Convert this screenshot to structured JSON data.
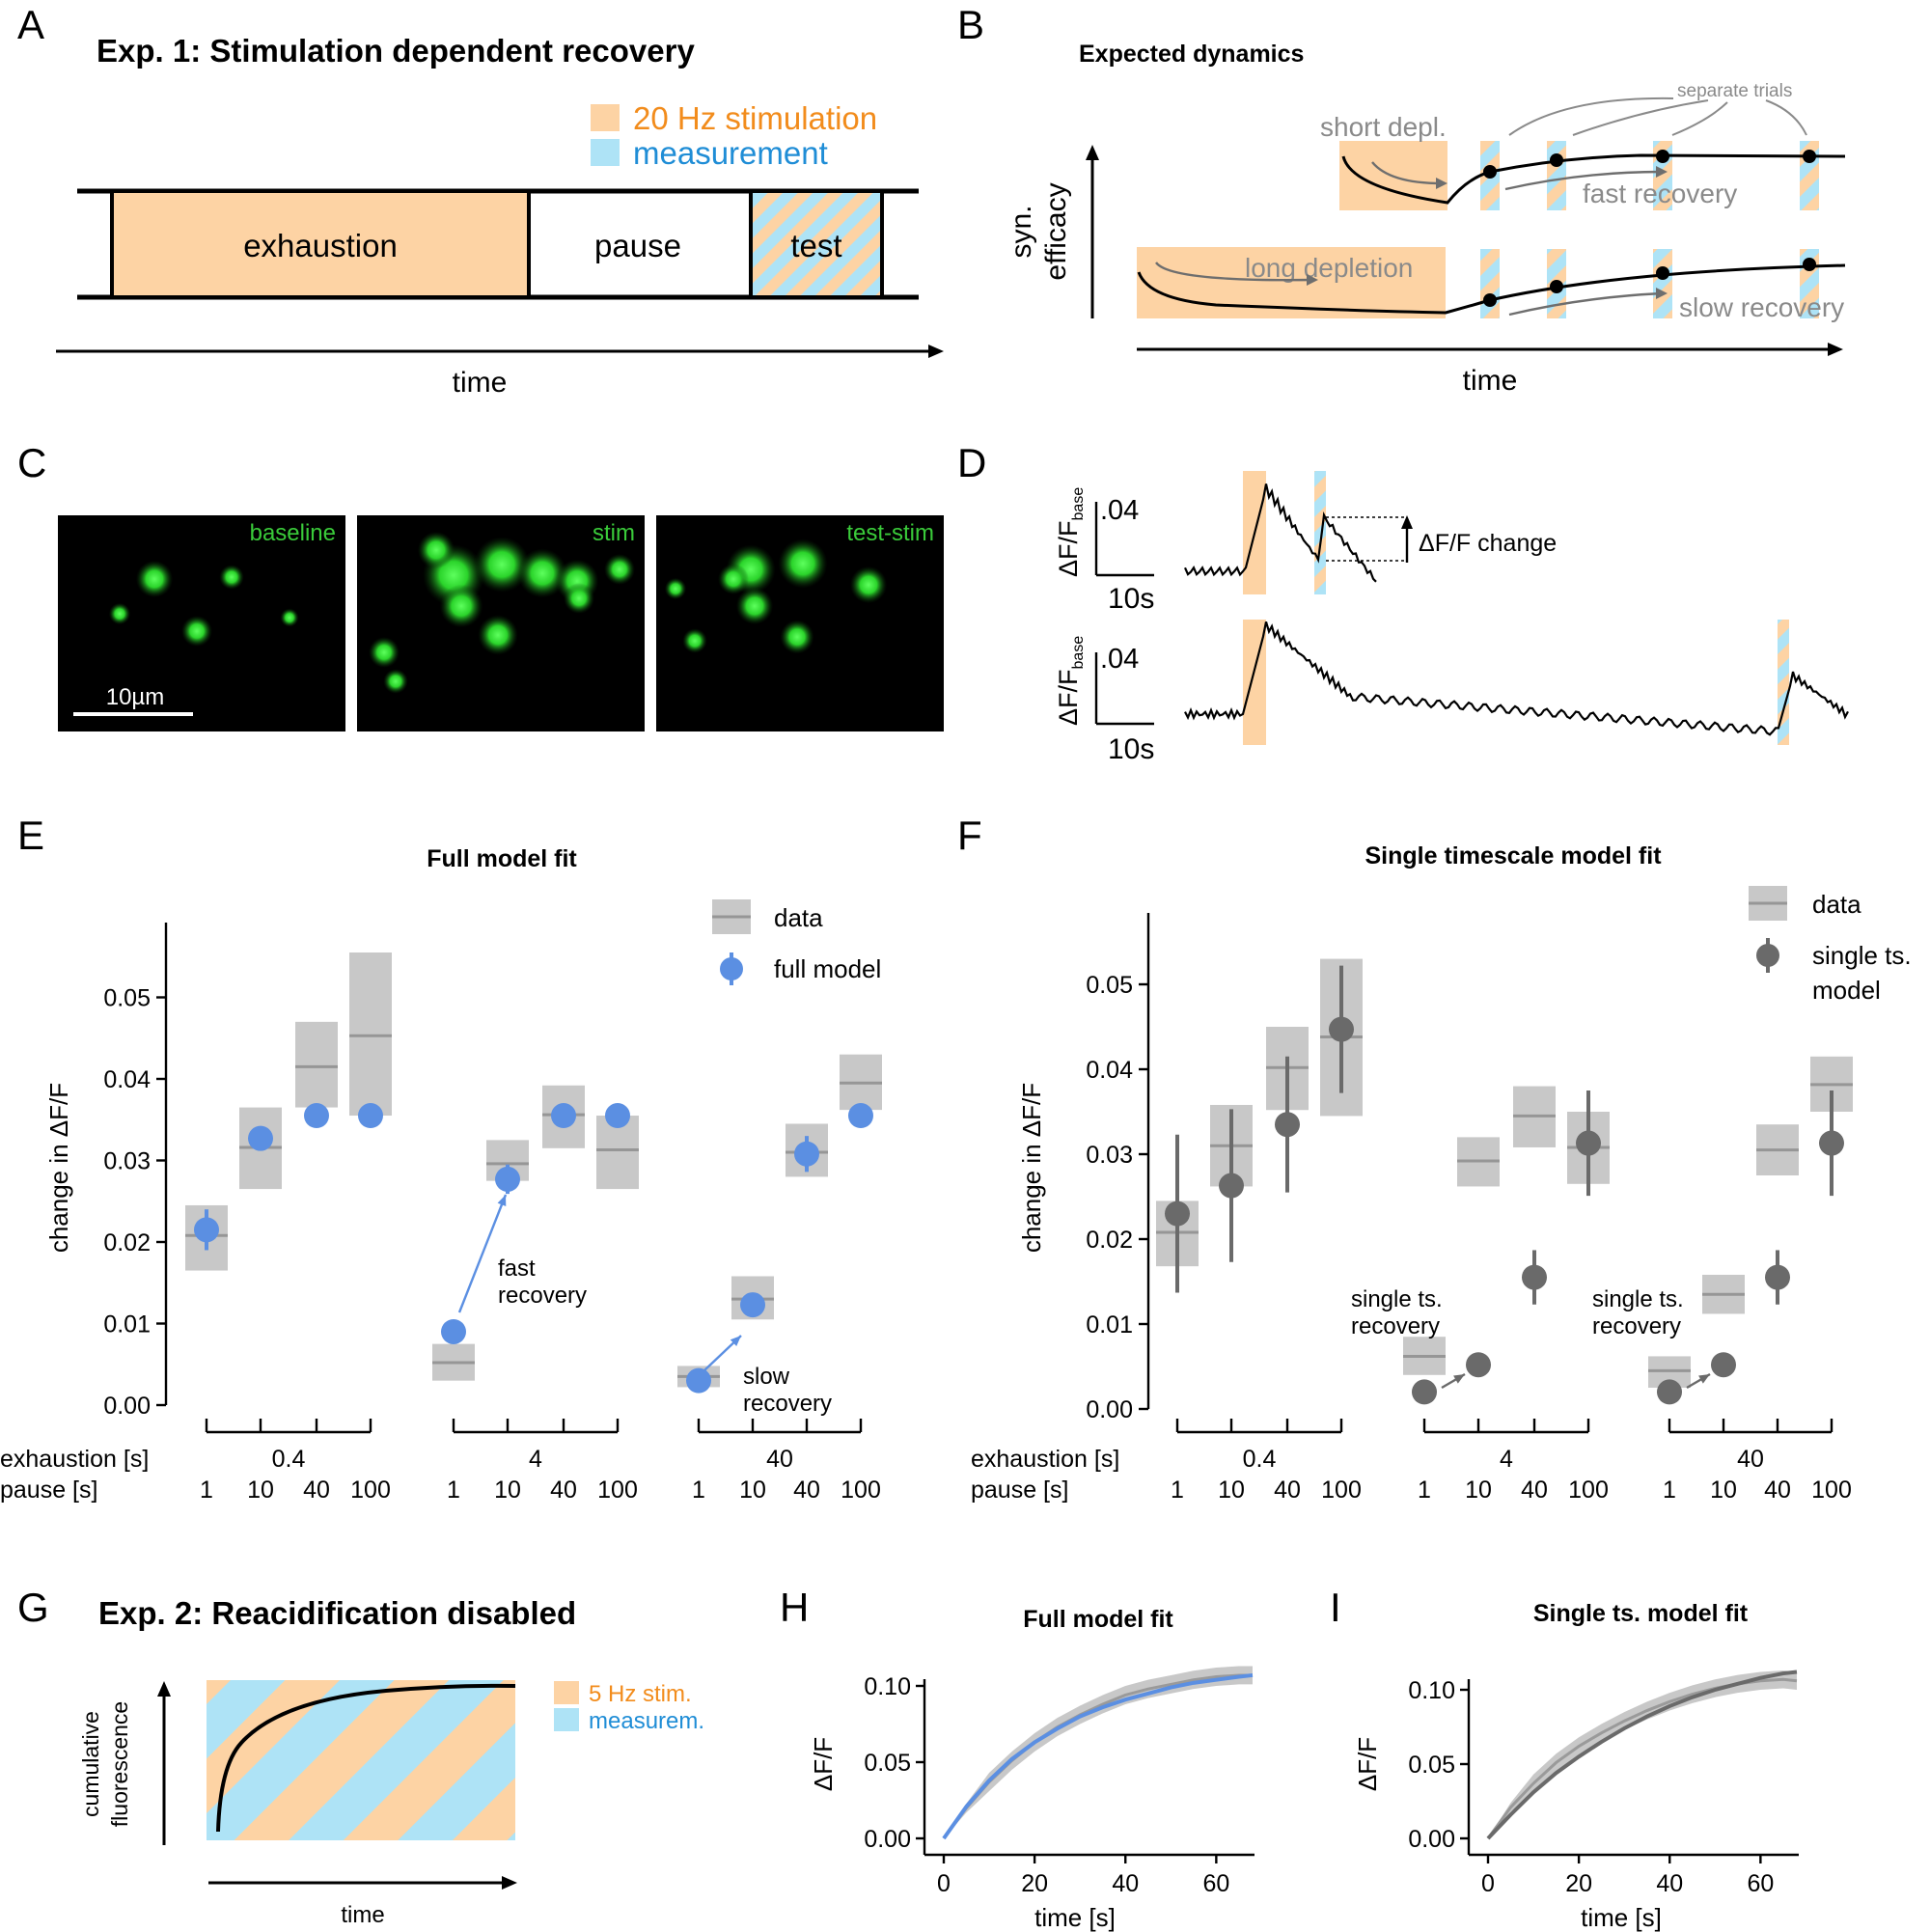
{
  "colors": {
    "orange": "#fdd3a4",
    "blue": "#aee3f6",
    "model_blue": "#5b8fe2",
    "data_gray": "#c8c8c8",
    "data_line": "#969696",
    "model_gray": "#6a6a6a",
    "green": "#33cc33",
    "orange_text": "#f28c1c",
    "blue_text": "#1f8dd6"
  },
  "panels": {
    "A": {
      "letter": "A",
      "title": "Exp. 1: Stimulation dependent recovery",
      "legend_stim": "20 Hz stimulation",
      "legend_meas": "measurement",
      "seg_exhaustion": "exhaustion",
      "seg_pause": "pause",
      "seg_test": "test",
      "xlabel": "time"
    },
    "B": {
      "letter": "B",
      "title": "Expected dynamics",
      "separate_trials": "separate trials",
      "short_depl": "short depl.",
      "fast_recovery": "fast recovery",
      "long_depletion": "long depletion",
      "slow_recovery": "slow recovery",
      "ylabel_1": "syn.",
      "ylabel_2": "efficacy",
      "xlabel": "time"
    },
    "C": {
      "letter": "C",
      "img1": "baseline",
      "img2": "stim",
      "img3": "test-stim",
      "scalebar": "10µm"
    },
    "D": {
      "letter": "D",
      "ylabel_main": "ΔF/F",
      "ylabel_sub": "base",
      "ytick": ".04",
      "xscale": "10s",
      "annotation": "ΔF/F change"
    },
    "E": {
      "letter": "E",
      "tick_labels": [
        "0.00",
        "0.01",
        "0.02",
        "0.03",
        "0.04",
        "0.05"
      ],
      "legend_data": "data",
      "legend_model": "full model",
      "ann_fast": [
        "fast",
        "recovery"
      ],
      "ann_slow": [
        "slow",
        "recovery"
      ]
    },
    "F": {
      "letter": "F",
      "tick_labels": [
        "0.00",
        "0.01",
        "0.02",
        "0.03",
        "0.04",
        "0.05"
      ],
      "legend_data": "data",
      "legend_model": [
        "single ts.",
        "model"
      ],
      "ann_single": [
        "single ts.",
        "recovery"
      ]
    },
    "G": {
      "letter": "G",
      "title": "Exp. 2: Reacidification disabled",
      "legend_stim": "5 Hz stim.",
      "legend_meas": "measurem.",
      "ylabel_1": "cumulative",
      "ylabel_2": "fluorescence",
      "xlabel": "time"
    },
    "H": {
      "letter": "H"
    },
    "I": {
      "letter": "I"
    }
  },
  "chart_data": [
    {
      "panel": "E",
      "type": "scatter",
      "title": "Full model fit",
      "ylabel": "change in ΔF/F",
      "ylim": [
        0,
        0.06
      ],
      "group_label": "exhaustion [s]",
      "subgroup_label": "pause [s]",
      "groups": [
        "0.4",
        "4",
        "40"
      ],
      "pauses": [
        "1",
        "10",
        "40",
        "100"
      ],
      "data_median": [
        [
          0.0208,
          0.0316,
          0.0415,
          0.0453
        ],
        [
          0.0052,
          0.0296,
          0.0356,
          0.0313
        ],
        [
          0.0035,
          0.013,
          0.031,
          0.0395
        ]
      ],
      "data_low": [
        [
          0.0165,
          0.0265,
          0.0365,
          0.0355
        ],
        [
          0.003,
          0.0275,
          0.0315,
          0.0265
        ],
        [
          0.0022,
          0.0105,
          0.028,
          0.0362
        ]
      ],
      "data_high": [
        [
          0.0245,
          0.0365,
          0.047,
          0.0555
        ],
        [
          0.0075,
          0.0325,
          0.0392,
          0.0355
        ],
        [
          0.0048,
          0.0158,
          0.0345,
          0.043
        ]
      ],
      "model": [
        [
          0.0215,
          0.0327,
          0.0355,
          0.0355
        ],
        [
          0.009,
          0.0277,
          0.0355,
          0.0355
        ],
        [
          0.003,
          0.0123,
          0.0308,
          0.0355
        ]
      ],
      "model_err": [
        0.0025,
        0.001,
        0.0005,
        0.0005,
        0.0005,
        0.0018,
        0.0005,
        0.0005,
        0.0005,
        0.0008,
        0.0022,
        0.0005
      ]
    },
    {
      "panel": "F",
      "type": "scatter",
      "title": "Single timescale model fit",
      "ylabel": "change in ΔF/F",
      "ylim": [
        0,
        0.06
      ],
      "group_label": "exhaustion [s]",
      "subgroup_label": "pause [s]",
      "groups": [
        "0.4",
        "4",
        "40"
      ],
      "pauses": [
        "1",
        "10",
        "40",
        "100"
      ],
      "data_median": [
        [
          0.0208,
          0.031,
          0.0402,
          0.0438
        ],
        [
          0.0062,
          0.0292,
          0.0345,
          0.0308
        ],
        [
          0.0045,
          0.0135,
          0.0305,
          0.0382
        ]
      ],
      "data_low": [
        [
          0.0168,
          0.0262,
          0.0352,
          0.0345
        ],
        [
          0.004,
          0.0262,
          0.0308,
          0.0265
        ],
        [
          0.0025,
          0.0112,
          0.0275,
          0.035
        ]
      ],
      "data_high": [
        [
          0.0245,
          0.0358,
          0.045,
          0.053
        ],
        [
          0.0085,
          0.032,
          0.038,
          0.035
        ],
        [
          0.0062,
          0.0158,
          0.0335,
          0.0415
        ]
      ],
      "model": [
        [
          0.023,
          0.0263,
          0.0335,
          0.0447
        ],
        [
          0.002,
          0.0052,
          0.0155,
          0.0313
        ],
        [
          0.002,
          0.0052,
          0.0155,
          0.0313
        ]
      ],
      "model_err": [
        0.0093,
        0.009,
        0.008,
        0.0075,
        0.0005,
        0.0005,
        0.0032,
        0.0062,
        0.0005,
        0.0005,
        0.0032,
        0.0062
      ]
    },
    {
      "panel": "H",
      "type": "line",
      "title": "Full model fit",
      "xlabel": "time [s]",
      "ylabel": "ΔF/F",
      "xlim": [
        0,
        68
      ],
      "ylim": [
        0,
        0.12
      ],
      "xticks": [
        "0",
        "20",
        "40",
        "60"
      ],
      "yticks": [
        "0.00",
        "0.05",
        "0.10"
      ],
      "x": [
        0,
        5,
        10,
        15,
        20,
        25,
        30,
        35,
        40,
        45,
        50,
        55,
        60,
        65,
        68
      ],
      "data": [
        0.0,
        0.02,
        0.037,
        0.051,
        0.063,
        0.073,
        0.081,
        0.088,
        0.094,
        0.098,
        0.101,
        0.104,
        0.106,
        0.107,
        0.107
      ],
      "data_band": 0.006,
      "model": [
        0.0,
        0.021,
        0.038,
        0.052,
        0.063,
        0.072,
        0.08,
        0.086,
        0.091,
        0.095,
        0.099,
        0.102,
        0.104,
        0.106,
        0.107
      ]
    },
    {
      "panel": "I",
      "type": "line",
      "title": "Single ts. model fit",
      "xlabel": "time [s]",
      "ylabel": "ΔF/F",
      "xlim": [
        0,
        68
      ],
      "ylim": [
        0,
        0.12
      ],
      "xticks": [
        "0",
        "20",
        "40",
        "60"
      ],
      "yticks": [
        "0.00",
        "0.05",
        "0.10"
      ],
      "x": [
        0,
        5,
        10,
        15,
        20,
        25,
        30,
        35,
        40,
        45,
        50,
        55,
        60,
        65,
        68
      ],
      "data": [
        0.0,
        0.021,
        0.037,
        0.051,
        0.062,
        0.071,
        0.079,
        0.086,
        0.092,
        0.097,
        0.101,
        0.104,
        0.106,
        0.107,
        0.106
      ],
      "data_band": 0.006,
      "model": [
        0.0,
        0.016,
        0.031,
        0.044,
        0.055,
        0.065,
        0.074,
        0.082,
        0.089,
        0.095,
        0.1,
        0.104,
        0.108,
        0.111,
        0.112
      ]
    }
  ]
}
